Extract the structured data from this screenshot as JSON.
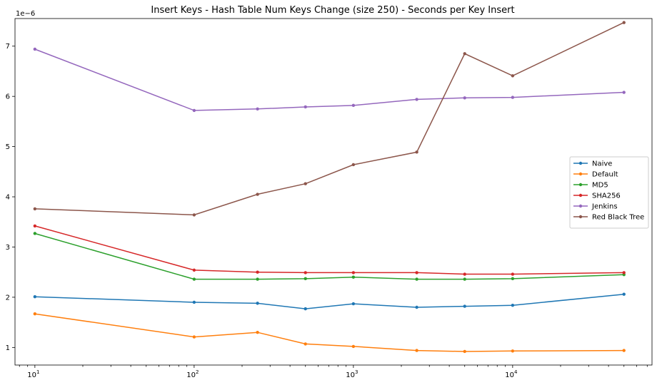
{
  "chart_data": {
    "type": "line",
    "title": "Insert Keys - Hash Table Num Keys Change (size 250) - Seconds per Key Insert",
    "xlabel": "",
    "ylabel": "",
    "x_scale": "log",
    "xlim": [
      7.5,
      75000
    ],
    "ylim": [
      0.65,
      7.55
    ],
    "y_offset_label": "1e−6",
    "x_ticks": [
      {
        "value": 10,
        "label": "10",
        "exp": "1"
      },
      {
        "value": 100,
        "label": "10",
        "exp": "2"
      },
      {
        "value": 1000,
        "label": "10",
        "exp": "3"
      },
      {
        "value": 10000,
        "label": "10",
        "exp": "4"
      }
    ],
    "y_ticks": [
      1,
      2,
      3,
      4,
      5,
      6,
      7
    ],
    "grid": false,
    "legend_position": "center-right",
    "x": [
      10,
      100,
      250,
      500,
      1000,
      2500,
      5000,
      10000,
      50000
    ],
    "series": [
      {
        "name": "Naive",
        "color": "#1f77b4",
        "values": [
          2.01,
          1.9,
          1.88,
          1.77,
          1.87,
          1.8,
          1.82,
          1.84,
          2.06
        ]
      },
      {
        "name": "Default",
        "color": "#ff7f0e",
        "values": [
          1.67,
          1.21,
          1.3,
          1.07,
          1.02,
          0.94,
          0.92,
          0.93,
          0.94
        ]
      },
      {
        "name": "MD5",
        "color": "#2ca02c",
        "values": [
          3.27,
          2.36,
          2.36,
          2.37,
          2.4,
          2.36,
          2.36,
          2.37,
          2.45
        ]
      },
      {
        "name": "SHA256",
        "color": "#d62728",
        "values": [
          3.42,
          2.54,
          2.5,
          2.49,
          2.49,
          2.49,
          2.46,
          2.46,
          2.49
        ]
      },
      {
        "name": "Jenkins",
        "color": "#9467bd",
        "values": [
          6.94,
          5.72,
          5.75,
          5.79,
          5.82,
          5.94,
          5.97,
          5.98,
          6.08
        ]
      },
      {
        "name": "Red Black Tree",
        "color": "#8c564b",
        "values": [
          3.76,
          3.64,
          4.05,
          4.26,
          4.64,
          4.89,
          6.85,
          6.41,
          7.47
        ]
      }
    ]
  }
}
